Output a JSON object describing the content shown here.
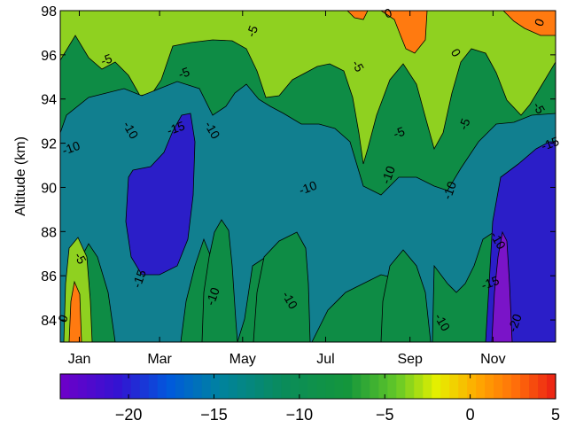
{
  "chart_data": {
    "type": "contour",
    "ylabel": "Altitude (km)",
    "xlabel": "",
    "x_ticks": [
      "Jan",
      "Mar",
      "May",
      "Jul",
      "Sep",
      "Nov"
    ],
    "x_tick_days": [
      15,
      74,
      135,
      196,
      258,
      319
    ],
    "xlim_days": [
      1,
      365
    ],
    "y_ticks": [
      84,
      86,
      88,
      90,
      92,
      94,
      96,
      98
    ],
    "ylim": [
      83,
      98
    ],
    "levels": [
      -20,
      -15,
      -10,
      -5,
      0
    ],
    "colorbar": {
      "ticks": [
        -20,
        -15,
        -10,
        -5,
        0,
        5
      ],
      "lim": [
        -24,
        5
      ],
      "colormap": "jet-like (purple to red)"
    },
    "fill_colors": {
      "below_-20": "#7a14c8",
      "-20_to_-15": "#2b1ec8",
      "-15_to_-10": "#117f8f",
      "-10_to_-5": "#0e8c45",
      "-5_to_0": "#8fd120",
      "above_0": "#ff7a10"
    },
    "contour_labels": [
      {
        "value": "0",
        "day": 6,
        "alt": 84.0
      },
      {
        "value": "-5",
        "day": 13,
        "alt": 86.7
      },
      {
        "value": "-10",
        "day": 10,
        "alt": 91.6
      },
      {
        "value": "-15",
        "day": 62,
        "alt": 85.8
      },
      {
        "value": "-10",
        "day": 50,
        "alt": 92.5
      },
      {
        "value": "-15",
        "day": 87,
        "alt": 92.5
      },
      {
        "value": "-10",
        "day": 116,
        "alt": 85.0
      },
      {
        "value": "-10",
        "day": 110,
        "alt": 92.5
      },
      {
        "value": "-5",
        "day": 93,
        "alt": 95.0
      },
      {
        "value": "-5",
        "day": 145,
        "alt": 97.0
      },
      {
        "value": "-10",
        "day": 167,
        "alt": 84.8
      },
      {
        "value": "-10",
        "day": 184,
        "alt": 89.8
      },
      {
        "value": "-10",
        "day": 245,
        "alt": 90.5
      },
      {
        "value": "-5",
        "day": 217,
        "alt": 95.4
      },
      {
        "value": "-5",
        "day": 251,
        "alt": 92.3
      },
      {
        "value": "-10",
        "day": 290,
        "alt": 89.8
      },
      {
        "value": "0",
        "day": 289,
        "alt": 96.0
      },
      {
        "value": "0",
        "day": 243,
        "alt": 97.7
      },
      {
        "value": "-5",
        "day": 301,
        "alt": 92.8
      },
      {
        "value": "-10",
        "day": 320,
        "alt": 87.5
      },
      {
        "value": "-15",
        "day": 318,
        "alt": 85.5
      },
      {
        "value": "-20",
        "day": 338,
        "alt": 83.8
      },
      {
        "value": "-5",
        "day": 350,
        "alt": 93.5
      },
      {
        "value": "-15",
        "day": 362,
        "alt": 91.8
      },
      {
        "value": "0",
        "day": 356,
        "alt": 97.4
      },
      {
        "value": "-10",
        "day": 279,
        "alt": 83.8
      },
      {
        "value": "-5",
        "day": 36,
        "alt": 95.6
      }
    ]
  }
}
